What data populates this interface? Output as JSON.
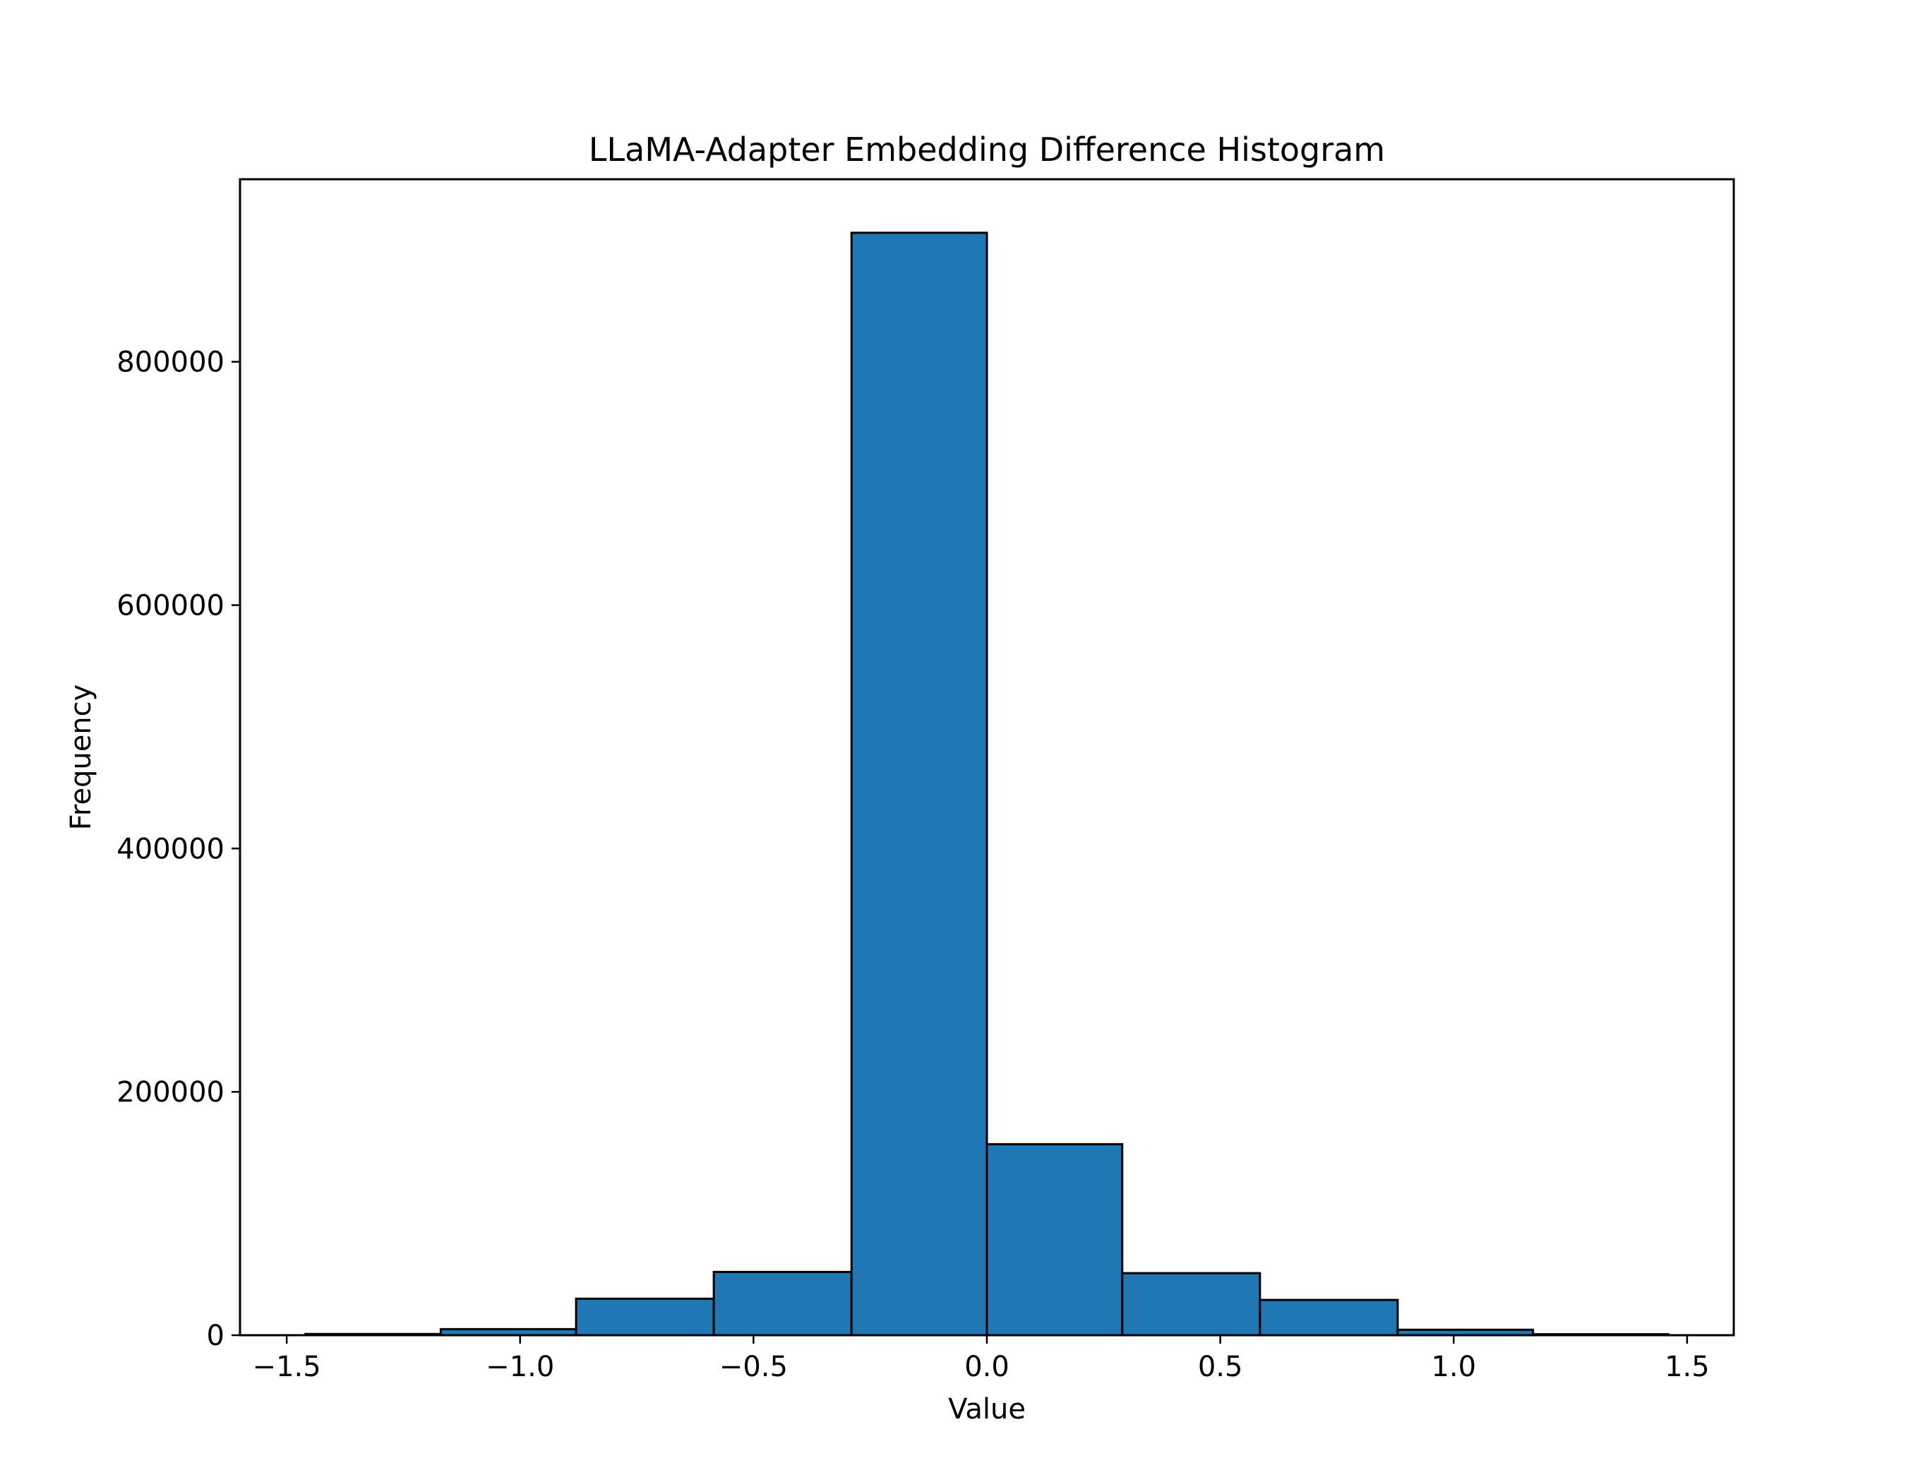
{
  "chart_data": {
    "type": "bar",
    "title": "LLaMA-Adapter Embedding Difference Histogram",
    "xlabel": "Value",
    "ylabel": "Frequency",
    "xlim": [
      -1.6,
      1.6
    ],
    "ylim": [
      0,
      950000
    ],
    "grid": false,
    "bin_edges": [
      -1.46,
      -1.17,
      -0.88,
      -0.585,
      -0.29,
      0.0,
      0.29,
      0.585,
      0.88,
      1.17,
      1.46
    ],
    "values": [
      1000,
      5000,
      30000,
      52000,
      906000,
      157000,
      51000,
      29000,
      4500,
      800
    ],
    "xticks": [
      -1.5,
      -1.0,
      -0.5,
      0.0,
      0.5,
      1.0,
      1.5
    ],
    "xtick_labels": [
      "−1.5",
      "−1.0",
      "−0.5",
      "0.0",
      "0.5",
      "1.0",
      "1.5"
    ],
    "yticks": [
      0,
      200000,
      400000,
      600000,
      800000
    ],
    "ytick_labels": [
      "0",
      "200000",
      "400000",
      "600000",
      "800000"
    ],
    "bar_color": "#1f77b4",
    "edge_color": "#000000"
  }
}
